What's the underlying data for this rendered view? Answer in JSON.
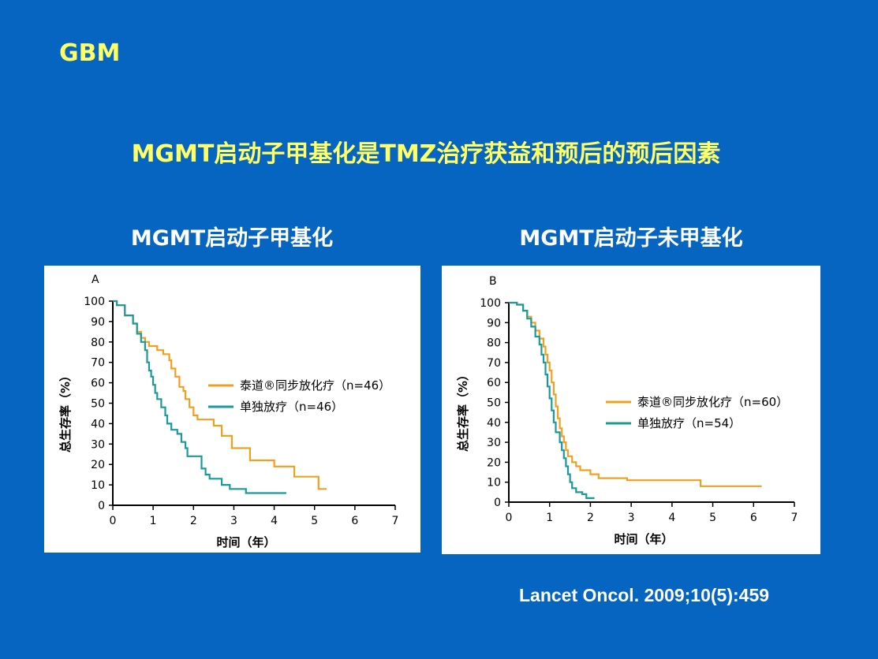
{
  "slide": {
    "tag": "GBM",
    "title": "MGMT启动子甲基化是TMZ治疗获益和预后的预后因素",
    "citation": "Lancet Oncol. 2009;10(5):459"
  },
  "colors": {
    "background": "#0565c0",
    "title": "#ffff66",
    "combo": "#f0a020",
    "mono": "#1a9a9a"
  },
  "chart_data": [
    {
      "type": "line",
      "subtitle": "MGMT启动子甲基化",
      "panel_label": "A",
      "xlabel": "时间（年）",
      "ylabel": "总生存率（%）",
      "xlim": [
        0,
        7
      ],
      "ylim": [
        0,
        100
      ],
      "xticks": [
        "0",
        "1",
        "2",
        "3",
        "4",
        "5",
        "6",
        "7"
      ],
      "yticks": [
        "0",
        "10",
        "20",
        "30",
        "40",
        "50",
        "60",
        "70",
        "80",
        "90",
        "100"
      ],
      "legend_position": "right",
      "series": [
        {
          "name": "泰道®同步放化疗（n=46）",
          "color": "#f0a020",
          "points": [
            [
              0,
              100
            ],
            [
              0.1,
              100
            ],
            [
              0.1,
              98
            ],
            [
              0.3,
              98
            ],
            [
              0.3,
              93
            ],
            [
              0.5,
              93
            ],
            [
              0.5,
              89
            ],
            [
              0.6,
              89
            ],
            [
              0.6,
              85
            ],
            [
              0.7,
              85
            ],
            [
              0.7,
              82
            ],
            [
              0.8,
              82
            ],
            [
              0.8,
              80
            ],
            [
              0.9,
              80
            ],
            [
              0.9,
              78
            ],
            [
              1.1,
              78
            ],
            [
              1.1,
              76
            ],
            [
              1.25,
              76
            ],
            [
              1.25,
              74
            ],
            [
              1.4,
              74
            ],
            [
              1.4,
              71
            ],
            [
              1.45,
              71
            ],
            [
              1.45,
              67
            ],
            [
              1.55,
              67
            ],
            [
              1.55,
              63
            ],
            [
              1.65,
              63
            ],
            [
              1.65,
              58
            ],
            [
              1.75,
              58
            ],
            [
              1.75,
              56
            ],
            [
              1.8,
              56
            ],
            [
              1.8,
              52
            ],
            [
              1.9,
              52
            ],
            [
              1.9,
              48
            ],
            [
              2.0,
              48
            ],
            [
              2.0,
              44
            ],
            [
              2.1,
              44
            ],
            [
              2.1,
              42
            ],
            [
              2.5,
              42
            ],
            [
              2.5,
              39
            ],
            [
              2.7,
              39
            ],
            [
              2.7,
              34
            ],
            [
              2.95,
              34
            ],
            [
              2.95,
              28
            ],
            [
              3.4,
              28
            ],
            [
              3.4,
              22
            ],
            [
              4.0,
              22
            ],
            [
              4.0,
              19
            ],
            [
              4.5,
              19
            ],
            [
              4.5,
              14
            ],
            [
              5.1,
              14
            ],
            [
              5.1,
              8
            ],
            [
              5.3,
              8
            ]
          ]
        },
        {
          "name": "单独放疗（n=46）",
          "color": "#1a9a9a",
          "points": [
            [
              0,
              100
            ],
            [
              0.1,
              100
            ],
            [
              0.1,
              98
            ],
            [
              0.3,
              98
            ],
            [
              0.3,
              93
            ],
            [
              0.5,
              93
            ],
            [
              0.5,
              89
            ],
            [
              0.6,
              89
            ],
            [
              0.6,
              84
            ],
            [
              0.7,
              84
            ],
            [
              0.7,
              80
            ],
            [
              0.8,
              80
            ],
            [
              0.8,
              76
            ],
            [
              0.85,
              76
            ],
            [
              0.85,
              70
            ],
            [
              0.9,
              70
            ],
            [
              0.9,
              66
            ],
            [
              0.95,
              66
            ],
            [
              0.95,
              63
            ],
            [
              1.0,
              63
            ],
            [
              1.0,
              59
            ],
            [
              1.05,
              59
            ],
            [
              1.05,
              55
            ],
            [
              1.1,
              55
            ],
            [
              1.1,
              52
            ],
            [
              1.2,
              52
            ],
            [
              1.2,
              48
            ],
            [
              1.3,
              48
            ],
            [
              1.3,
              44
            ],
            [
              1.35,
              44
            ],
            [
              1.35,
              40
            ],
            [
              1.45,
              40
            ],
            [
              1.45,
              37
            ],
            [
              1.6,
              37
            ],
            [
              1.6,
              35
            ],
            [
              1.7,
              35
            ],
            [
              1.7,
              31
            ],
            [
              1.8,
              31
            ],
            [
              1.8,
              28
            ],
            [
              1.85,
              28
            ],
            [
              1.85,
              24
            ],
            [
              2.2,
              24
            ],
            [
              2.2,
              18
            ],
            [
              2.3,
              18
            ],
            [
              2.3,
              15
            ],
            [
              2.4,
              15
            ],
            [
              2.4,
              13
            ],
            [
              2.7,
              13
            ],
            [
              2.7,
              10
            ],
            [
              2.9,
              10
            ],
            [
              2.9,
              8
            ],
            [
              3.3,
              8
            ],
            [
              3.3,
              6
            ],
            [
              4.3,
              6
            ]
          ]
        }
      ]
    },
    {
      "type": "line",
      "subtitle": "MGMT启动子未甲基化",
      "panel_label": "B",
      "xlabel": "时间（年）",
      "ylabel": "总生存率（%）",
      "xlim": [
        0,
        7
      ],
      "ylim": [
        0,
        100
      ],
      "xticks": [
        "0",
        "1",
        "2",
        "3",
        "4",
        "5",
        "6",
        "7"
      ],
      "yticks": [
        "0",
        "10",
        "20",
        "30",
        "40",
        "50",
        "60",
        "70",
        "80",
        "90",
        "100"
      ],
      "legend_position": "right",
      "series": [
        {
          "name": "泰道®同步放化疗（n=60）",
          "color": "#f0a020",
          "points": [
            [
              0,
              100
            ],
            [
              0.2,
              100
            ],
            [
              0.2,
              99
            ],
            [
              0.35,
              99
            ],
            [
              0.35,
              96
            ],
            [
              0.45,
              96
            ],
            [
              0.45,
              93
            ],
            [
              0.55,
              93
            ],
            [
              0.55,
              90
            ],
            [
              0.65,
              90
            ],
            [
              0.65,
              86
            ],
            [
              0.75,
              86
            ],
            [
              0.75,
              82
            ],
            [
              0.85,
              82
            ],
            [
              0.85,
              78
            ],
            [
              0.9,
              78
            ],
            [
              0.9,
              74
            ],
            [
              0.95,
              74
            ],
            [
              0.95,
              70
            ],
            [
              1.0,
              70
            ],
            [
              1.0,
              66
            ],
            [
              1.05,
              66
            ],
            [
              1.05,
              60
            ],
            [
              1.1,
              60
            ],
            [
              1.1,
              54
            ],
            [
              1.15,
              54
            ],
            [
              1.15,
              48
            ],
            [
              1.2,
              48
            ],
            [
              1.2,
              42
            ],
            [
              1.25,
              42
            ],
            [
              1.25,
              37
            ],
            [
              1.3,
              37
            ],
            [
              1.3,
              33
            ],
            [
              1.35,
              33
            ],
            [
              1.35,
              30
            ],
            [
              1.4,
              30
            ],
            [
              1.4,
              26
            ],
            [
              1.45,
              26
            ],
            [
              1.45,
              23
            ],
            [
              1.55,
              23
            ],
            [
              1.55,
              20
            ],
            [
              1.65,
              20
            ],
            [
              1.65,
              18
            ],
            [
              1.75,
              18
            ],
            [
              1.75,
              16
            ],
            [
              2.0,
              16
            ],
            [
              2.0,
              14
            ],
            [
              2.2,
              14
            ],
            [
              2.2,
              12
            ],
            [
              2.9,
              12
            ],
            [
              2.9,
              11
            ],
            [
              4.7,
              11
            ],
            [
              4.7,
              8
            ],
            [
              6.2,
              8
            ]
          ]
        },
        {
          "name": "单独放疗（n=54）",
          "color": "#1a9a9a",
          "points": [
            [
              0,
              100
            ],
            [
              0.2,
              100
            ],
            [
              0.2,
              99
            ],
            [
              0.35,
              99
            ],
            [
              0.35,
              96
            ],
            [
              0.45,
              96
            ],
            [
              0.45,
              92
            ],
            [
              0.55,
              92
            ],
            [
              0.55,
              88
            ],
            [
              0.65,
              88
            ],
            [
              0.65,
              83
            ],
            [
              0.75,
              83
            ],
            [
              0.75,
              79
            ],
            [
              0.8,
              79
            ],
            [
              0.8,
              74
            ],
            [
              0.85,
              74
            ],
            [
              0.85,
              70
            ],
            [
              0.9,
              70
            ],
            [
              0.9,
              64
            ],
            [
              0.95,
              64
            ],
            [
              0.95,
              58
            ],
            [
              1.0,
              58
            ],
            [
              1.0,
              52
            ],
            [
              1.05,
              52
            ],
            [
              1.05,
              46
            ],
            [
              1.1,
              46
            ],
            [
              1.1,
              40
            ],
            [
              1.15,
              40
            ],
            [
              1.15,
              35
            ],
            [
              1.25,
              35
            ],
            [
              1.25,
              30
            ],
            [
              1.3,
              30
            ],
            [
              1.3,
              26
            ],
            [
              1.35,
              26
            ],
            [
              1.35,
              22
            ],
            [
              1.4,
              22
            ],
            [
              1.4,
              18
            ],
            [
              1.45,
              18
            ],
            [
              1.45,
              14
            ],
            [
              1.5,
              14
            ],
            [
              1.5,
              10
            ],
            [
              1.55,
              10
            ],
            [
              1.55,
              7
            ],
            [
              1.65,
              7
            ],
            [
              1.65,
              5
            ],
            [
              1.8,
              5
            ],
            [
              1.8,
              4
            ],
            [
              1.9,
              4
            ],
            [
              1.9,
              2
            ],
            [
              2.1,
              2
            ]
          ]
        }
      ]
    }
  ]
}
